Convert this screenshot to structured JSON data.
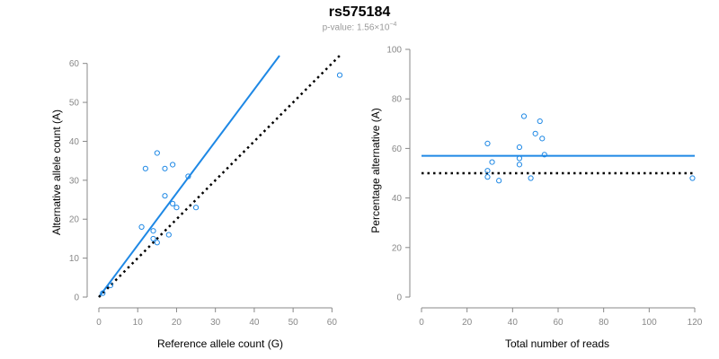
{
  "header": {
    "title": "rs575184",
    "subtitle_prefix": "p-value: 1.56×10",
    "subtitle_exponent": "−4"
  },
  "colors": {
    "points": "#1E88E5",
    "fit_line": "#1E88E5",
    "reference_line": "#000000",
    "axis": "#888888"
  },
  "chart_data": [
    {
      "type": "scatter",
      "title": "",
      "xlabel": "Reference allele count (G)",
      "ylabel": "Alternative allele count (A)",
      "xlim": [
        0,
        62
      ],
      "ylim": [
        0,
        62
      ],
      "xticks": [
        0,
        10,
        20,
        30,
        40,
        50,
        60
      ],
      "yticks": [
        0,
        10,
        20,
        30,
        40,
        50,
        60
      ],
      "points": [
        {
          "x": 1,
          "y": 1
        },
        {
          "x": 3,
          "y": 3
        },
        {
          "x": 11,
          "y": 18
        },
        {
          "x": 12,
          "y": 33
        },
        {
          "x": 14,
          "y": 15
        },
        {
          "x": 14,
          "y": 17
        },
        {
          "x": 15,
          "y": 14
        },
        {
          "x": 15,
          "y": 37
        },
        {
          "x": 17,
          "y": 26
        },
        {
          "x": 17,
          "y": 33
        },
        {
          "x": 18,
          "y": 16
        },
        {
          "x": 19,
          "y": 24
        },
        {
          "x": 19,
          "y": 34
        },
        {
          "x": 20,
          "y": 23
        },
        {
          "x": 23,
          "y": 31
        },
        {
          "x": 25,
          "y": 23
        },
        {
          "x": 62,
          "y": 57
        }
      ],
      "lines": [
        {
          "kind": "fit",
          "style": "solid",
          "x": [
            0,
            46.5
          ],
          "y": [
            0,
            62
          ]
        },
        {
          "kind": "reference",
          "style": "dotted",
          "x": [
            0,
            62
          ],
          "y": [
            0,
            62
          ]
        }
      ],
      "grid": false
    },
    {
      "type": "scatter",
      "title": "",
      "xlabel": "Total number of reads",
      "ylabel": "Percentage alternative (A)",
      "xlim": [
        0,
        120
      ],
      "ylim": [
        0,
        100
      ],
      "xticks": [
        0,
        20,
        40,
        60,
        80,
        100,
        120
      ],
      "yticks": [
        0,
        20,
        40,
        60,
        80,
        100
      ],
      "points": [
        {
          "x": 29,
          "y": 62
        },
        {
          "x": 29,
          "y": 51
        },
        {
          "x": 29,
          "y": 48.5
        },
        {
          "x": 31,
          "y": 54.5
        },
        {
          "x": 34,
          "y": 47
        },
        {
          "x": 43,
          "y": 60.5
        },
        {
          "x": 43,
          "y": 56
        },
        {
          "x": 43,
          "y": 53.5
        },
        {
          "x": 45,
          "y": 73
        },
        {
          "x": 48,
          "y": 48
        },
        {
          "x": 50,
          "y": 66
        },
        {
          "x": 52,
          "y": 71
        },
        {
          "x": 53,
          "y": 64
        },
        {
          "x": 54,
          "y": 57.5
        },
        {
          "x": 119,
          "y": 48
        }
      ],
      "lines": [
        {
          "kind": "fit",
          "style": "solid",
          "x": [
            0,
            120
          ],
          "y": [
            57,
            57
          ]
        },
        {
          "kind": "reference",
          "style": "dotted",
          "x": [
            0,
            120
          ],
          "y": [
            50,
            50
          ]
        }
      ],
      "grid": false
    }
  ]
}
